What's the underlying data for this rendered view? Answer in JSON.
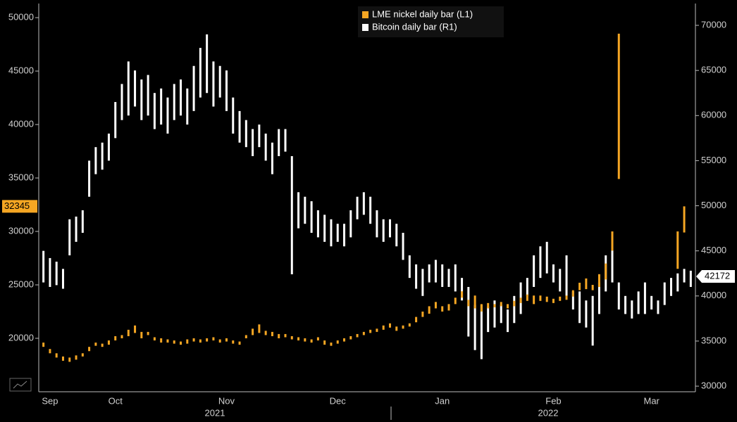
{
  "chart_data": {
    "type": "range-bar",
    "categories": [
      null,
      "Sep",
      null,
      null,
      null,
      null,
      null,
      null,
      null,
      null,
      null,
      "Oct",
      null,
      null,
      null,
      null,
      null,
      null,
      null,
      null,
      null,
      null,
      null,
      null,
      null,
      null,
      null,
      null,
      "Nov",
      null,
      null,
      null,
      null,
      null,
      null,
      null,
      null,
      null,
      null,
      null,
      null,
      null,
      null,
      null,
      null,
      "Dec",
      null,
      null,
      null,
      null,
      null,
      null,
      null,
      null,
      null,
      null,
      null,
      null,
      null,
      null,
      null,
      "Jan",
      null,
      null,
      null,
      null,
      null,
      null,
      null,
      null,
      null,
      null,
      null,
      null,
      null,
      null,
      null,
      null,
      "Feb",
      null,
      null,
      null,
      null,
      null,
      null,
      null,
      null,
      null,
      null,
      null,
      null,
      null,
      null,
      "Mar",
      null,
      null,
      null,
      null,
      null,
      null
    ],
    "years": [
      "2021",
      "2022"
    ],
    "legend": "upper center",
    "ylim": [
      15000,
      51320
    ],
    "yticks": [
      20000,
      25000,
      30000,
      35000,
      40000,
      45000,
      50000
    ],
    "y2lim": [
      29380,
      72420
    ],
    "y2ticks": [
      30000,
      35000,
      40000,
      45000,
      50000,
      55000,
      60000,
      65000,
      70000
    ],
    "series": [
      {
        "name": "Bitcoin daily bar (R1)",
        "color": "#ffffff",
        "axis": "y2",
        "last_value": 42172,
        "low": [
          41500,
          41000,
          41200,
          40800,
          44500,
          46000,
          47000,
          51000,
          53500,
          54000,
          55000,
          57500,
          59500,
          60000,
          61000,
          59500,
          60000,
          58500,
          59000,
          58000,
          59500,
          60000,
          59000,
          60500,
          62000,
          62500,
          61000,
          62000,
          60500,
          58000,
          57000,
          56500,
          55500,
          56500,
          55000,
          53500,
          55500,
          56000,
          42400,
          47500,
          48000,
          47000,
          46500,
          46000,
          45500,
          46000,
          45500,
          46500,
          48500,
          49000,
          48000,
          46500,
          46000,
          46500,
          45500,
          44000,
          42000,
          40800,
          40000,
          41500,
          41500,
          41000,
          41000,
          40500,
          39500,
          35500,
          34000,
          33000,
          36000,
          36500,
          37000,
          36000,
          37000,
          38000,
          40000,
          41000,
          42000,
          42500,
          41500,
          40500,
          40000,
          38500,
          37000,
          36500,
          34500,
          38000,
          40500,
          41500,
          38500,
          38000,
          37500,
          38000,
          38000,
          38500,
          38000,
          39000,
          40000,
          40500,
          41500,
          41000
        ],
        "high": [
          45000,
          44200,
          43800,
          43000,
          48500,
          48800,
          49500,
          55000,
          56500,
          57000,
          58000,
          61500,
          63500,
          66000,
          65000,
          64000,
          64500,
          62500,
          63000,
          62000,
          63500,
          64000,
          63000,
          65500,
          67500,
          69000,
          66000,
          65500,
          65000,
          62000,
          60500,
          59500,
          58500,
          59000,
          58000,
          57000,
          58500,
          58500,
          55500,
          51500,
          51000,
          50500,
          49500,
          49000,
          48500,
          48000,
          48000,
          49500,
          51000,
          51500,
          51000,
          49500,
          48500,
          48500,
          48000,
          47000,
          44500,
          43500,
          43000,
          43500,
          44000,
          43500,
          43000,
          43500,
          42000,
          41000,
          39000,
          39000,
          38800,
          39500,
          39000,
          38500,
          40000,
          41500,
          42000,
          44500,
          45500,
          46000,
          43500,
          43000,
          44500,
          40500,
          40500,
          39500,
          40000,
          41500,
          44500,
          45500,
          41500,
          40000,
          39500,
          40500,
          41500,
          40000,
          39500,
          41500,
          42000,
          42500,
          43000,
          42800
        ]
      },
      {
        "name": "LME nickel daily bar (L1)",
        "color": "#f5a623",
        "axis": "y",
        "last_value": 32345,
        "low": [
          19200,
          18600,
          18200,
          17900,
          17800,
          18000,
          18300,
          18800,
          19300,
          19200,
          19400,
          19800,
          20000,
          20200,
          20500,
          20000,
          20300,
          19800,
          19600,
          19600,
          19500,
          19400,
          19500,
          19700,
          19600,
          19700,
          19800,
          19600,
          19700,
          19500,
          19400,
          20000,
          20300,
          20500,
          20300,
          20200,
          20000,
          20100,
          19900,
          19800,
          19700,
          19600,
          19800,
          19400,
          19300,
          19500,
          19700,
          19900,
          20100,
          20300,
          20500,
          20600,
          20800,
          21000,
          20700,
          20900,
          21100,
          21500,
          22000,
          22300,
          22800,
          22500,
          22600,
          23200,
          23800,
          23000,
          22800,
          22500,
          22800,
          22900,
          23000,
          22800,
          23000,
          23300,
          23500,
          23200,
          23500,
          23400,
          23300,
          23500,
          23600,
          23900,
          24500,
          24600,
          24500,
          24800,
          25500,
          28200,
          34900,
          null,
          null,
          null,
          null,
          null,
          null,
          null,
          null,
          26500,
          29900,
          null
        ],
        "high": [
          19600,
          19000,
          18600,
          18300,
          18200,
          18400,
          18600,
          19200,
          19600,
          19500,
          19800,
          20200,
          20300,
          20800,
          21200,
          20600,
          20600,
          20100,
          20000,
          19900,
          19800,
          19700,
          19900,
          20000,
          19900,
          20000,
          20100,
          19900,
          20000,
          19800,
          19700,
          20300,
          20900,
          21300,
          20700,
          20600,
          20400,
          20400,
          20200,
          20100,
          20000,
          19900,
          20100,
          19800,
          19600,
          19800,
          20000,
          20200,
          20400,
          20600,
          20800,
          20900,
          21200,
          21400,
          21100,
          21200,
          21400,
          22000,
          22500,
          23000,
          23400,
          23000,
          23200,
          23800,
          24400,
          23600,
          24000,
          23200,
          23300,
          23200,
          23400,
          23200,
          23500,
          23800,
          24100,
          24000,
          24000,
          23900,
          23700,
          23900,
          24000,
          24500,
          25200,
          25600,
          25000,
          26000,
          27000,
          30000,
          48500,
          null,
          null,
          null,
          null,
          null,
          null,
          null,
          null,
          30000,
          32345,
          null
        ]
      }
    ]
  }
}
